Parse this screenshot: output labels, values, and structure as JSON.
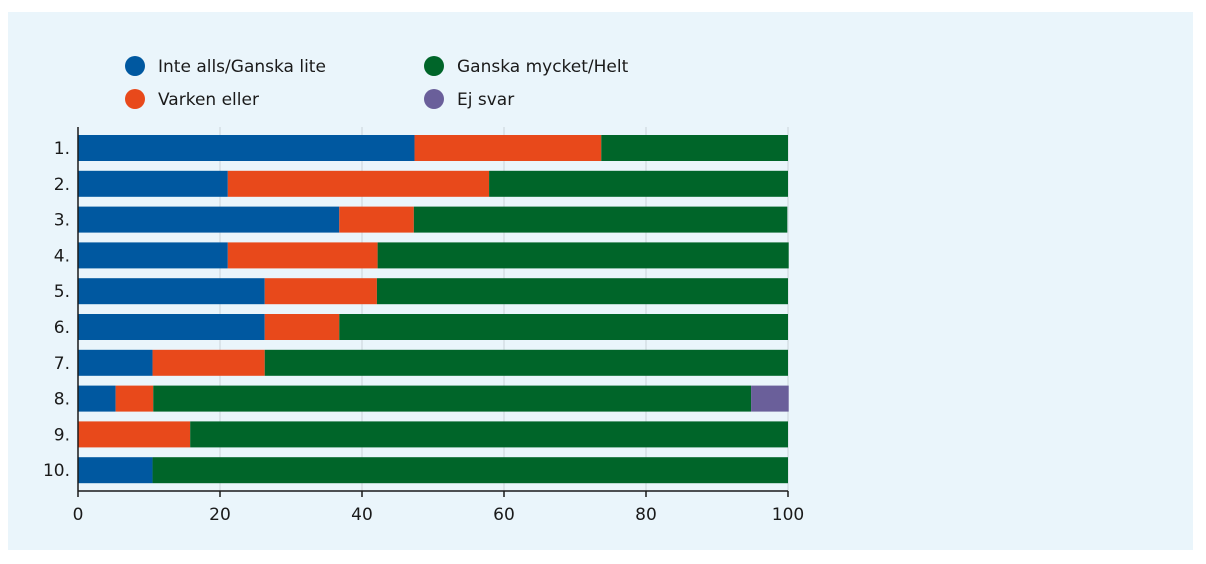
{
  "chart_data": {
    "type": "bar",
    "orientation": "horizontal",
    "stacked": true,
    "categories": [
      "1.",
      "2.",
      "3.",
      "4.",
      "5.",
      "6.",
      "7.",
      "8.",
      "9.",
      "10."
    ],
    "series": [
      {
        "name": "Inte alls/Ganska lite",
        "color": "#0058a0",
        "values": [
          47.4,
          21.1,
          36.8,
          21.1,
          26.3,
          26.3,
          10.5,
          5.3,
          0,
          10.5
        ]
      },
      {
        "name": "Varken eller",
        "color": "#e8491b",
        "values": [
          26.3,
          36.8,
          10.5,
          21.1,
          15.8,
          10.5,
          15.8,
          5.3,
          15.8,
          0
        ]
      },
      {
        "name": "Ganska mycket/Helt",
        "color": "#006529",
        "values": [
          26.3,
          42.1,
          52.6,
          57.9,
          57.9,
          63.2,
          73.7,
          84.2,
          84.2,
          89.5
        ]
      },
      {
        "name": "Ej svar",
        "color": "#6a5f9a",
        "values": [
          0,
          0,
          0,
          0,
          0,
          0,
          0,
          5.3,
          0,
          0
        ]
      }
    ],
    "xlim": [
      0,
      100
    ],
    "xticks": [
      0,
      20,
      40,
      60,
      80,
      100
    ],
    "title": "",
    "xlabel": "",
    "ylabel": "",
    "grid": "vertical",
    "legend_position": "top"
  }
}
